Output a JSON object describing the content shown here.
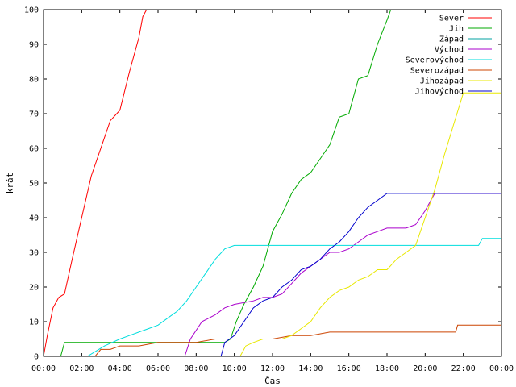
{
  "chart_data": {
    "type": "line",
    "xlabel": "Čas",
    "ylabel": "krát",
    "xlim": [
      0,
      24
    ],
    "ylim": [
      0,
      100
    ],
    "x_ticks": [
      0,
      2,
      4,
      6,
      8,
      10,
      12,
      14,
      16,
      18,
      20,
      22,
      24
    ],
    "x_tick_labels": [
      "00:00",
      "02:00",
      "04:00",
      "06:00",
      "08:00",
      "10:00",
      "12:00",
      "14:00",
      "16:00",
      "18:00",
      "20:00",
      "22:00",
      "00:00"
    ],
    "y_ticks": [
      0,
      10,
      20,
      30,
      40,
      50,
      60,
      70,
      80,
      90,
      100
    ],
    "y_tick_labels": [
      "0",
      "10",
      "20",
      "30",
      "40",
      "50",
      "60",
      "70",
      "80",
      "90",
      "100"
    ],
    "grid": false,
    "legend_position": "top-right",
    "series": [
      {
        "name": "Sever",
        "color": "#ff0000",
        "x": [
          0.0,
          0.2,
          0.5,
          0.8,
          1.1,
          1.5,
          2.0,
          2.5,
          3.0,
          3.5,
          4.0,
          4.5,
          5.0,
          5.2,
          5.4
        ],
        "y": [
          0,
          6,
          14,
          17,
          18,
          28,
          40,
          52,
          60,
          68,
          71,
          82,
          92,
          98,
          100
        ]
      },
      {
        "name": "Jih",
        "color": "#00aa00",
        "x": [
          0.9,
          1.1,
          9.5,
          9.8,
          10.1,
          10.5,
          11.0,
          11.5,
          12.0,
          12.5,
          13.0,
          13.5,
          14.0,
          14.5,
          15.0,
          15.5,
          16.0,
          16.5,
          17.0,
          17.5,
          18.0,
          18.2
        ],
        "y": [
          0,
          4,
          4,
          5,
          10,
          15,
          20,
          26,
          36,
          41,
          47,
          51,
          53,
          57,
          61,
          69,
          70,
          80,
          81,
          90,
          97,
          100
        ]
      },
      {
        "name": "Západ",
        "color": "#00a0a0",
        "x": [],
        "y": []
      },
      {
        "name": "Východ",
        "color": "#aa00cc",
        "x": [
          7.4,
          7.7,
          8.3,
          9.0,
          9.5,
          10.0,
          11.0,
          11.5,
          12.0,
          12.5,
          13.0,
          13.5,
          14.0,
          14.5,
          15.0,
          15.5,
          16.0,
          16.5,
          17.0,
          17.5,
          18.0,
          19.0,
          19.5,
          20.0,
          20.5,
          21.0,
          24.0
        ],
        "y": [
          0,
          5,
          10,
          12,
          14,
          15,
          16,
          17,
          17,
          18,
          21,
          24,
          26,
          28,
          30,
          30,
          31,
          33,
          35,
          36,
          37,
          37,
          38,
          42,
          47,
          47,
          47
        ]
      },
      {
        "name": "Severovýchod",
        "color": "#00dddd",
        "x": [
          2.3,
          2.6,
          3.2,
          4.0,
          4.5,
          5.0,
          5.5,
          6.0,
          6.5,
          7.0,
          7.5,
          8.0,
          8.5,
          9.0,
          9.5,
          10.0,
          11.0,
          12.0,
          14.0,
          16.0,
          18.0,
          20.0,
          22.0,
          22.8,
          23.0,
          24.0
        ],
        "y": [
          0,
          1,
          3,
          5,
          6,
          7,
          8,
          9,
          11,
          13,
          16,
          20,
          24,
          28,
          31,
          32,
          32,
          32,
          32,
          32,
          32,
          32,
          32,
          32,
          34,
          34
        ]
      },
      {
        "name": "Severozápad",
        "color": "#cc4400",
        "x": [
          2.7,
          3.0,
          3.5,
          4.0,
          5.0,
          6.0,
          7.0,
          8.0,
          9.0,
          10.0,
          11.0,
          12.0,
          13.0,
          14.0,
          15.0,
          16.0,
          17.0,
          18.0,
          19.0,
          20.0,
          21.0,
          21.6,
          21.7,
          22.5,
          24.0
        ],
        "y": [
          0,
          2,
          2,
          3,
          3,
          4,
          4,
          4,
          5,
          5,
          5,
          5,
          6,
          6,
          7,
          7,
          7,
          7,
          7,
          7,
          7,
          7,
          9,
          9,
          9
        ]
      },
      {
        "name": "Jihozápad",
        "color": "#e8e800",
        "x": [
          10.3,
          10.6,
          11.0,
          11.5,
          12.0,
          12.5,
          13.0,
          13.5,
          14.0,
          14.5,
          15.0,
          15.5,
          16.0,
          16.5,
          17.0,
          17.5,
          18.0,
          18.5,
          19.0,
          19.5,
          20.0,
          20.5,
          21.0,
          21.5,
          22.0,
          24.0
        ],
        "y": [
          0,
          3,
          4,
          5,
          5,
          5,
          6,
          8,
          10,
          14,
          17,
          19,
          20,
          22,
          23,
          25,
          25,
          28,
          30,
          32,
          40,
          48,
          58,
          67,
          76,
          76
        ]
      },
      {
        "name": "Jihovýchod",
        "color": "#0000cc",
        "x": [
          9.3,
          9.5,
          10.0,
          10.5,
          11.0,
          11.5,
          12.0,
          12.5,
          13.0,
          13.5,
          14.0,
          14.5,
          15.0,
          15.5,
          16.0,
          16.5,
          17.0,
          17.5,
          18.0,
          19.0,
          20.0,
          21.0,
          22.0,
          24.0
        ],
        "y": [
          0,
          4,
          6,
          10,
          14,
          16,
          17,
          20,
          22,
          25,
          26,
          28,
          31,
          33,
          36,
          40,
          43,
          45,
          47,
          47,
          47,
          47,
          47,
          47
        ]
      }
    ]
  }
}
